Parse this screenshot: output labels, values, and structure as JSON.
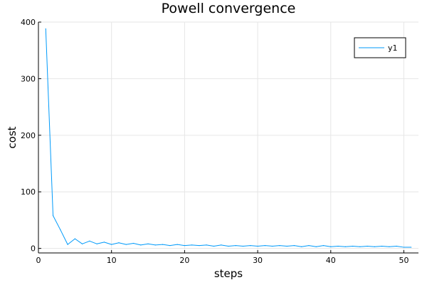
{
  "chart_data": {
    "type": "line",
    "title": "Powell convergence",
    "xlabel": "steps",
    "ylabel": "cost",
    "xlim": [
      0,
      52
    ],
    "ylim": [
      -8,
      400
    ],
    "xticks": [
      0,
      10,
      20,
      30,
      40,
      50
    ],
    "yticks": [
      0,
      100,
      200,
      300,
      400
    ],
    "grid": true,
    "legend_position": "top-right",
    "series": [
      {
        "name": "y1",
        "color": "#009AFA",
        "x": [
          1,
          2,
          3,
          4,
          5,
          6,
          7,
          8,
          9,
          10,
          11,
          12,
          13,
          14,
          15,
          16,
          17,
          18,
          19,
          20,
          21,
          22,
          23,
          24,
          25,
          26,
          27,
          28,
          29,
          30,
          31,
          32,
          33,
          34,
          35,
          36,
          37,
          38,
          39,
          40,
          41,
          42,
          43,
          44,
          45,
          46,
          47,
          48,
          49,
          50,
          51
        ],
        "y": [
          388,
          58,
          33,
          7,
          17,
          8,
          13,
          8,
          11,
          7,
          10,
          7,
          9,
          6,
          8,
          6,
          7,
          5,
          7,
          5,
          6,
          5,
          6,
          4,
          6,
          4,
          5,
          4,
          5,
          4,
          5,
          4,
          5,
          4,
          5,
          3,
          5,
          3,
          5,
          3,
          4,
          3,
          4,
          3,
          4,
          3,
          4,
          3,
          4,
          2,
          2
        ]
      }
    ]
  }
}
